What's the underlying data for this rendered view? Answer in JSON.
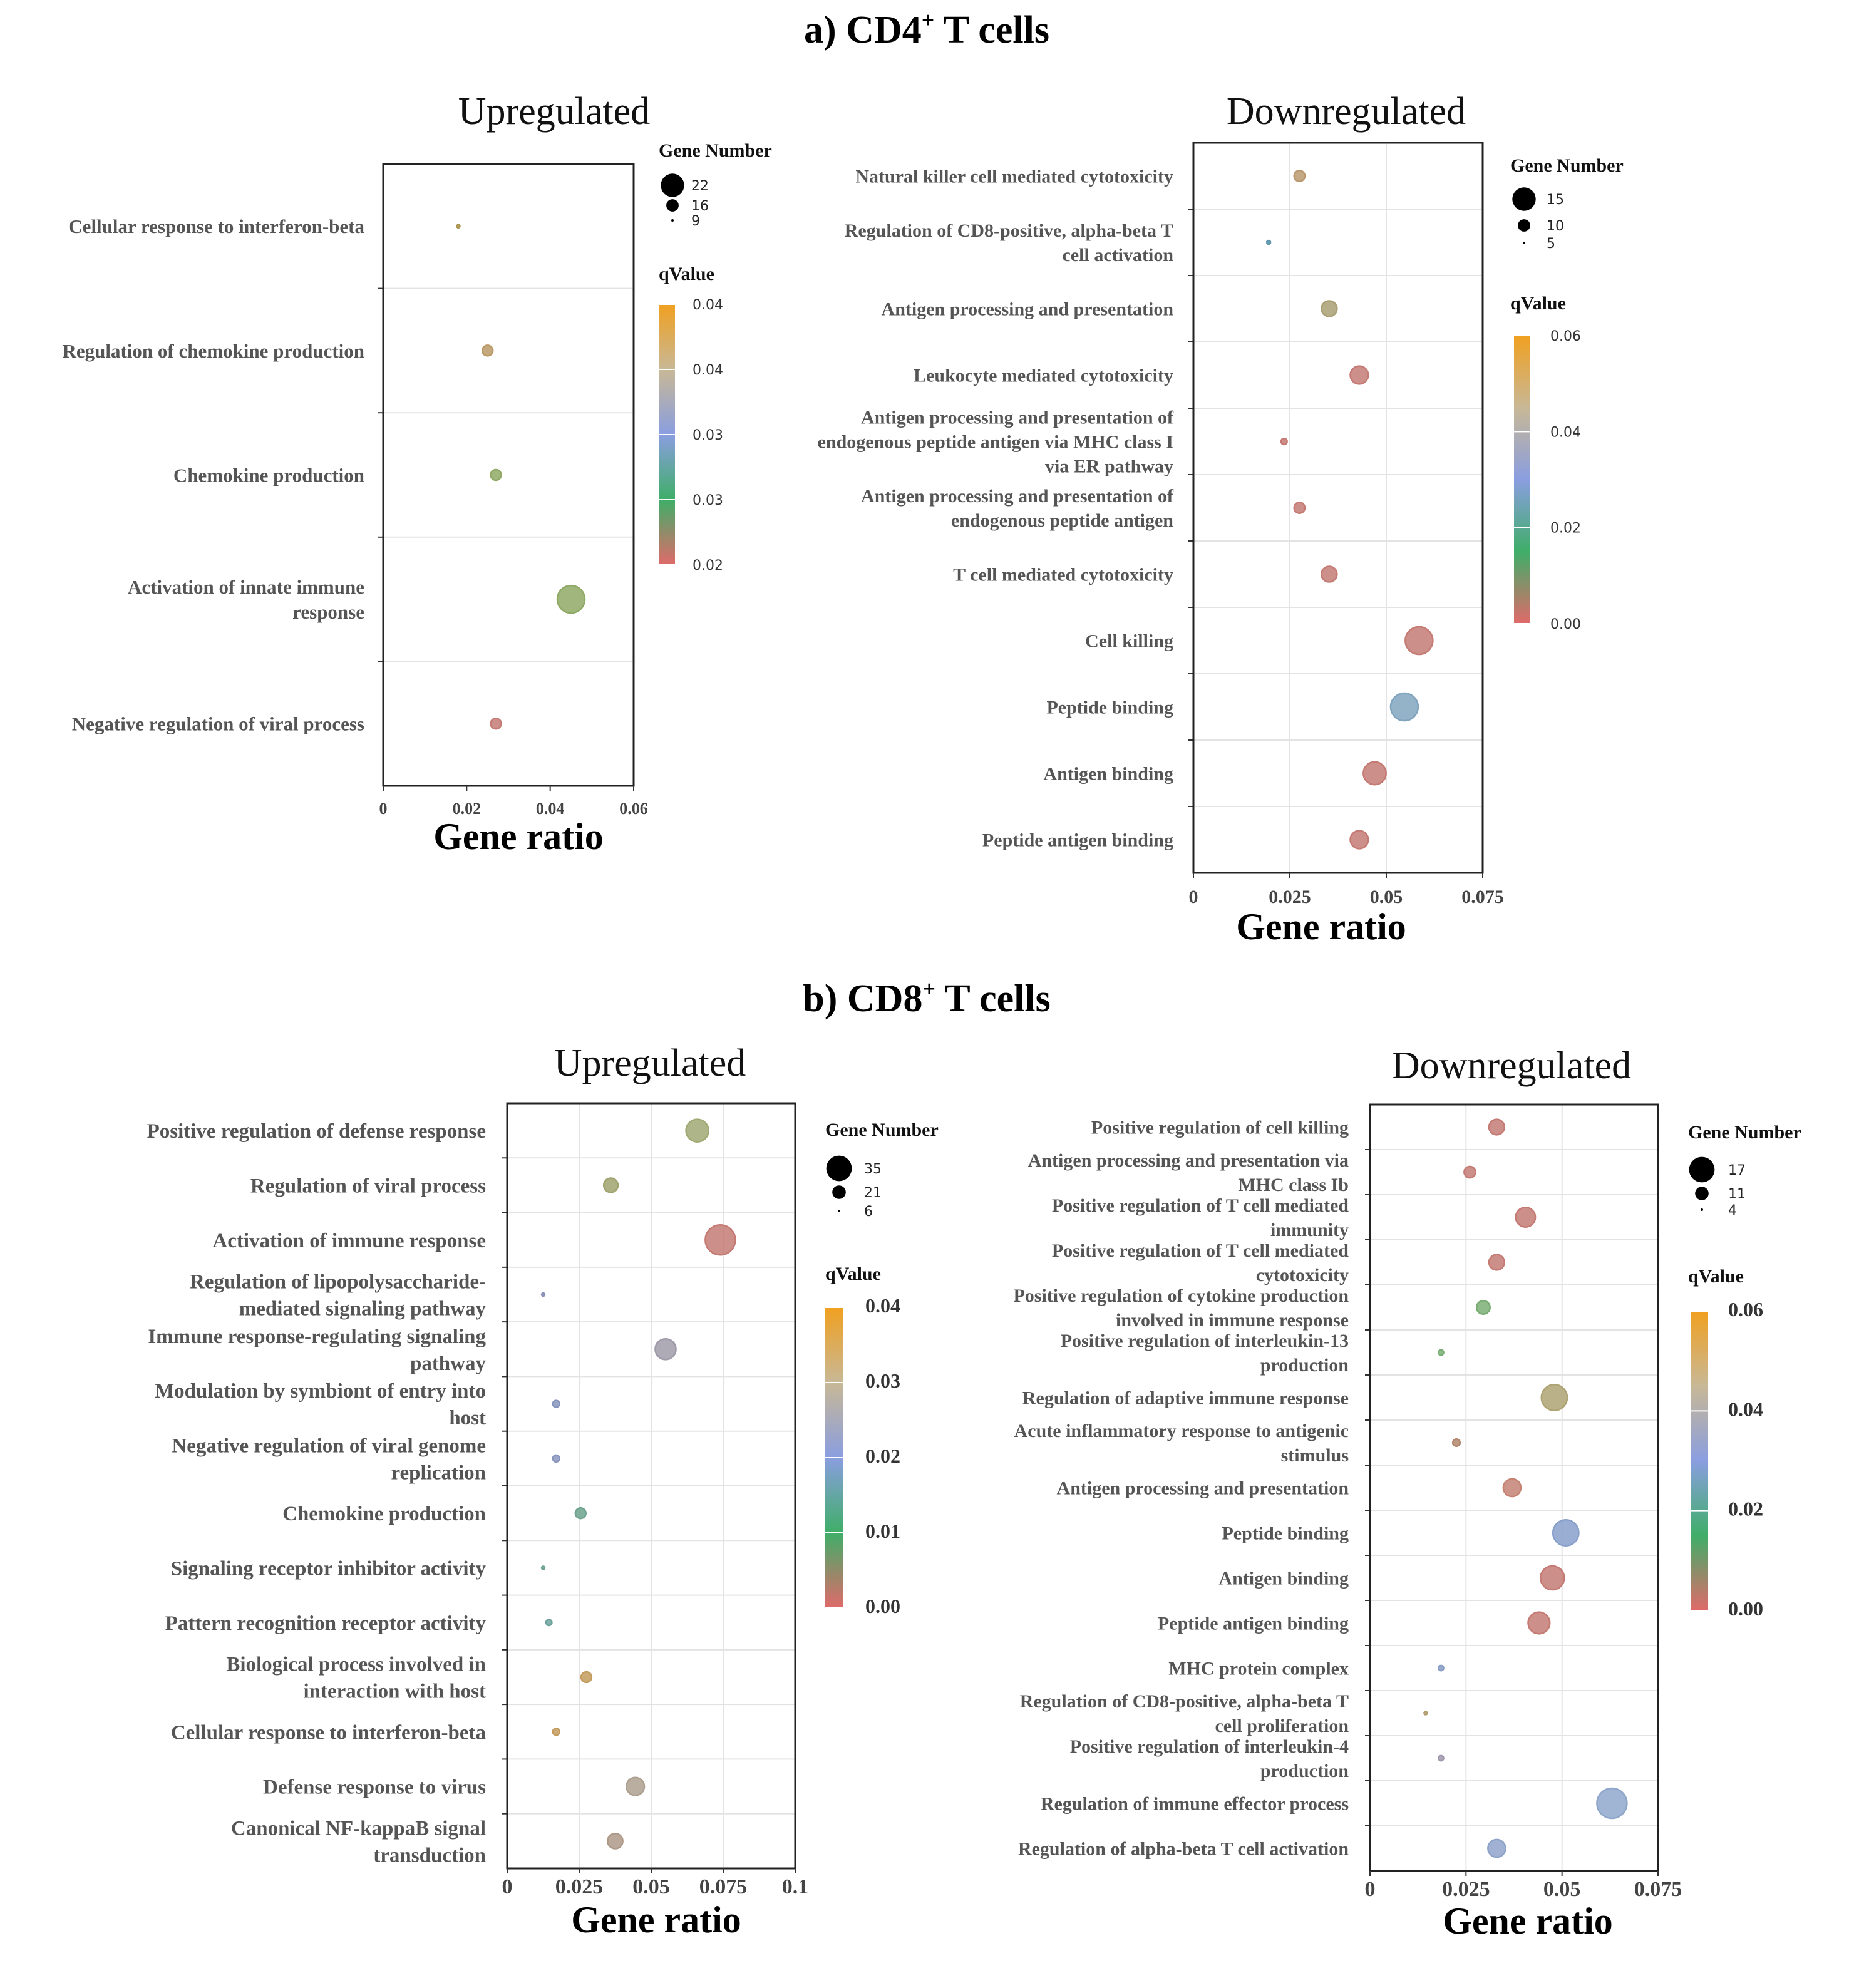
{
  "figure": {
    "section_a": {
      "letter": "a) CD4",
      "sup": "+",
      "rest": " T cells"
    },
    "section_b": {
      "letter": "b) CD8",
      "sup": "+",
      "rest": " T cells"
    }
  },
  "chart_data": [
    {
      "id": "a_up",
      "type": "scatter",
      "title": "Upregulated",
      "xlabel": "Gene ratio",
      "ylabel": "",
      "xlim": [
        0,
        0.06
      ],
      "xticks": [
        "0",
        "0.02",
        "0.04",
        "0.06"
      ],
      "xtick_values": [
        0,
        0.02,
        0.04,
        0.06
      ],
      "grid": false,
      "legend_size_title": "Gene Number",
      "size_legend": [
        22,
        16,
        9
      ],
      "size_range": [
        9,
        22
      ],
      "legend_color_title": "qValue",
      "color_ticks": [
        "0.04",
        "0.04",
        "0.03",
        "0.03",
        "0.02"
      ],
      "color_range": [
        0.02,
        0.04
      ],
      "colorbar_stops": [
        "#f0a020",
        "#c8b896",
        "#8a9ee0",
        "#3fae68",
        "#e06a6a"
      ],
      "points": [
        {
          "term": "Cellular response to interferon-beta",
          "x": 0.018,
          "size": 9,
          "q": 0.035,
          "color": "#c8b060"
        },
        {
          "term": "Regulation of chemokine production",
          "x": 0.025,
          "size": 13,
          "q": 0.038,
          "color": "#dcb478"
        },
        {
          "term": "Chemokine production",
          "x": 0.027,
          "size": 13,
          "q": 0.028,
          "color": "#a8c878"
        },
        {
          "term": "Activation of innate immune response",
          "x": 0.045,
          "size": 22,
          "q": 0.028,
          "color": "#a8c878"
        },
        {
          "term": "Negative regulation of viral process",
          "x": 0.027,
          "size": 13,
          "q": 0.02,
          "color": "#e89088"
        }
      ]
    },
    {
      "id": "a_down",
      "type": "scatter",
      "title": "Downregulated",
      "xlabel": "Gene ratio",
      "ylabel": "",
      "xlim": [
        0,
        0.075
      ],
      "xticks": [
        "0",
        "0.025",
        "0.05",
        "0.075"
      ],
      "xtick_values": [
        0,
        0.025,
        0.05,
        0.075
      ],
      "grid": true,
      "legend_size_title": "Gene Number",
      "size_legend": [
        15,
        10,
        5
      ],
      "size_range": [
        5,
        15
      ],
      "legend_color_title": "qValue",
      "color_ticks": [
        "0.06",
        "0.04",
        "0.02",
        "0.00"
      ],
      "color_range": [
        0,
        0.06
      ],
      "colorbar_stops": [
        "#f0a020",
        "#c8b896",
        "#8a9ee0",
        "#3fae68",
        "#e06a6a"
      ],
      "points": [
        {
          "term": "Natural killer cell mediated cytotoxicity",
          "x": 0.0275,
          "size": 8,
          "q": 0.05,
          "color": "#dcb482"
        },
        {
          "term": "Regulation of CD8-positive, alpha-beta T cell activation",
          "x": 0.0195,
          "size": 5,
          "q": 0.025,
          "color": "#6aaec8"
        },
        {
          "term": "Antigen processing and presentation",
          "x": 0.0352,
          "size": 10,
          "q": 0.045,
          "color": "#c8bc8a"
        },
        {
          "term": "Leukocyte mediated cytotoxicity",
          "x": 0.043,
          "size": 11,
          "q": 0.0,
          "color": "#e89088"
        },
        {
          "term": "Antigen processing and presentation of endogenous peptide antigen via MHC class I via ER pathway",
          "x": 0.0235,
          "size": 6,
          "q": 0.0,
          "color": "#e89088"
        },
        {
          "term": "Antigen processing and presentation of endogenous peptide antigen",
          "x": 0.0275,
          "size": 8,
          "q": 0.0,
          "color": "#e89088"
        },
        {
          "term": "T cell mediated cytotoxicity",
          "x": 0.0352,
          "size": 10,
          "q": 0.0,
          "color": "#e89088"
        },
        {
          "term": "Cell killing",
          "x": 0.0585,
          "size": 15,
          "q": 0.0,
          "color": "#e89088"
        },
        {
          "term": "Peptide binding",
          "x": 0.0547,
          "size": 15,
          "q": 0.028,
          "color": "#98c2e0"
        },
        {
          "term": "Antigen binding",
          "x": 0.047,
          "size": 13,
          "q": 0.0,
          "color": "#e89088"
        },
        {
          "term": "Peptide antigen binding",
          "x": 0.043,
          "size": 11,
          "q": 0.0,
          "color": "#e89088"
        }
      ]
    },
    {
      "id": "b_up",
      "type": "scatter",
      "title": "Upregulated",
      "xlabel": "Gene ratio",
      "ylabel": "",
      "xlim": [
        0,
        0.1
      ],
      "xticks": [
        "0",
        "0.025",
        "0.05",
        "0.075",
        "0.1"
      ],
      "xtick_values": [
        0,
        0.025,
        0.05,
        0.075,
        0.1
      ],
      "grid": true,
      "legend_size_title": "Gene Number",
      "size_legend": [
        35,
        21,
        6
      ],
      "size_range": [
        6,
        35
      ],
      "legend_color_title": "qValue",
      "color_ticks": [
        "0.04",
        "0.03",
        "0.02",
        "0.01",
        "0.00"
      ],
      "color_range": [
        0,
        0.04
      ],
      "colorbar_stops": [
        "#f0a020",
        "#c8b896",
        "#8a9ee0",
        "#3fae68",
        "#e06a6a"
      ],
      "points": [
        {
          "term": "Positive regulation of defense response",
          "x": 0.066,
          "size": 27,
          "q": 0.012,
          "color": "#bcc888"
        },
        {
          "term": "Regulation of viral process",
          "x": 0.036,
          "size": 18,
          "q": 0.012,
          "color": "#bcc080"
        },
        {
          "term": "Activation of immune response",
          "x": 0.074,
          "size": 35,
          "q": 0.0,
          "color": "#e89088"
        },
        {
          "term": "Regulation of lipopolysaccharide-mediated signaling pathway",
          "x": 0.0125,
          "size": 6,
          "q": 0.02,
          "color": "#a0a8d8"
        },
        {
          "term": "Immune response-regulating signaling pathway",
          "x": 0.055,
          "size": 25,
          "q": 0.027,
          "color": "#bcb6c8"
        },
        {
          "term": "Modulation by symbiont of entry into host",
          "x": 0.017,
          "size": 10,
          "q": 0.022,
          "color": "#a0b0e0"
        },
        {
          "term": "Negative regulation of viral genome replication",
          "x": 0.017,
          "size": 10,
          "q": 0.022,
          "color": "#a0b0e0"
        },
        {
          "term": "Chemokine production",
          "x": 0.0255,
          "size": 14,
          "q": 0.013,
          "color": "#80c0a8"
        },
        {
          "term": "Signaling receptor inhibitor activity",
          "x": 0.0125,
          "size": 6,
          "q": 0.013,
          "color": "#80c0a8"
        },
        {
          "term": "Pattern recognition receptor activity",
          "x": 0.0145,
          "size": 9,
          "q": 0.013,
          "color": "#80c0b8"
        },
        {
          "term": "Biological process involved in interaction with host",
          "x": 0.0275,
          "size": 14,
          "q": 0.036,
          "color": "#e8b870"
        },
        {
          "term": "Cellular response to interferon-beta",
          "x": 0.017,
          "size": 10,
          "q": 0.036,
          "color": "#e8b870"
        },
        {
          "term": "Defense response to virus",
          "x": 0.0445,
          "size": 22,
          "q": 0.031,
          "color": "#ccbcaa"
        },
        {
          "term": "Canonical NF-kappaB signal transduction",
          "x": 0.0375,
          "size": 19,
          "q": 0.032,
          "color": "#ccb4a0"
        }
      ]
    },
    {
      "id": "b_down",
      "type": "scatter",
      "title": "Downregulated",
      "xlabel": "Gene ratio",
      "ylabel": "",
      "xlim": [
        0,
        0.075
      ],
      "xticks": [
        "0",
        "0.025",
        "0.05",
        "0.075"
      ],
      "xtick_values": [
        0,
        0.025,
        0.05,
        0.075
      ],
      "grid": true,
      "legend_size_title": "Gene Number",
      "size_legend": [
        17,
        11,
        4
      ],
      "size_range": [
        4,
        17
      ],
      "legend_color_title": "qValue",
      "color_ticks": [
        "0.06",
        "0.04",
        "0.02",
        "0.00"
      ],
      "color_range": [
        0,
        0.06
      ],
      "colorbar_stops": [
        "#f0a020",
        "#c8b896",
        "#8a9ee0",
        "#3fae68",
        "#e06a6a"
      ],
      "points": [
        {
          "term": "Positive regulation of cell killing",
          "x": 0.033,
          "size": 10,
          "q": 0.0,
          "color": "#e89088"
        },
        {
          "term": "Antigen processing and presentation via MHC class Ib",
          "x": 0.026,
          "size": 8,
          "q": 0.0,
          "color": "#e89088"
        },
        {
          "term": "Positive regulation of T cell mediated immunity",
          "x": 0.0405,
          "size": 12,
          "q": 0.0,
          "color": "#e89088"
        },
        {
          "term": "Positive regulation of T cell mediated cytotoxicity",
          "x": 0.033,
          "size": 10,
          "q": 0.0,
          "color": "#e89088"
        },
        {
          "term": "Positive regulation of cytokine production involved in immune response",
          "x": 0.0295,
          "size": 9,
          "q": 0.015,
          "color": "#90cc88"
        },
        {
          "term": "Positive regulation of interleukin-13 production",
          "x": 0.0185,
          "size": 5,
          "q": 0.015,
          "color": "#90cc88"
        },
        {
          "term": "Regulation of adaptive immune response",
          "x": 0.048,
          "size": 15,
          "q": 0.045,
          "color": "#ccc088"
        },
        {
          "term": "Acute inflammatory response to antigenic stimulus",
          "x": 0.0225,
          "size": 6,
          "q": 0.048,
          "color": "#d0a080"
        },
        {
          "term": "Antigen processing and presentation",
          "x": 0.037,
          "size": 11,
          "q": 0.0,
          "color": "#e89a88"
        },
        {
          "term": "Peptide binding",
          "x": 0.051,
          "size": 15,
          "q": 0.03,
          "color": "#a0bcee"
        },
        {
          "term": "Antigen binding",
          "x": 0.0475,
          "size": 14,
          "q": 0.0,
          "color": "#e89088"
        },
        {
          "term": "Peptide antigen binding",
          "x": 0.044,
          "size": 13,
          "q": 0.0,
          "color": "#e89088"
        },
        {
          "term": "MHC protein complex",
          "x": 0.0185,
          "size": 5,
          "q": 0.035,
          "color": "#a0b8e8"
        },
        {
          "term": "Regulation of CD8-positive, alpha-beta T cell proliferation",
          "x": 0.0145,
          "size": 4,
          "q": 0.05,
          "color": "#d0b880"
        },
        {
          "term": "Positive regulation of interleukin-4 production",
          "x": 0.0185,
          "size": 5,
          "q": 0.04,
          "color": "#bcb4cc"
        },
        {
          "term": "Regulation of immune effector process",
          "x": 0.063,
          "size": 17,
          "q": 0.03,
          "color": "#a8c4ee"
        },
        {
          "term": "Regulation of alpha-beta T cell activation",
          "x": 0.033,
          "size": 11,
          "q": 0.03,
          "color": "#a8c0ee"
        }
      ]
    }
  ]
}
